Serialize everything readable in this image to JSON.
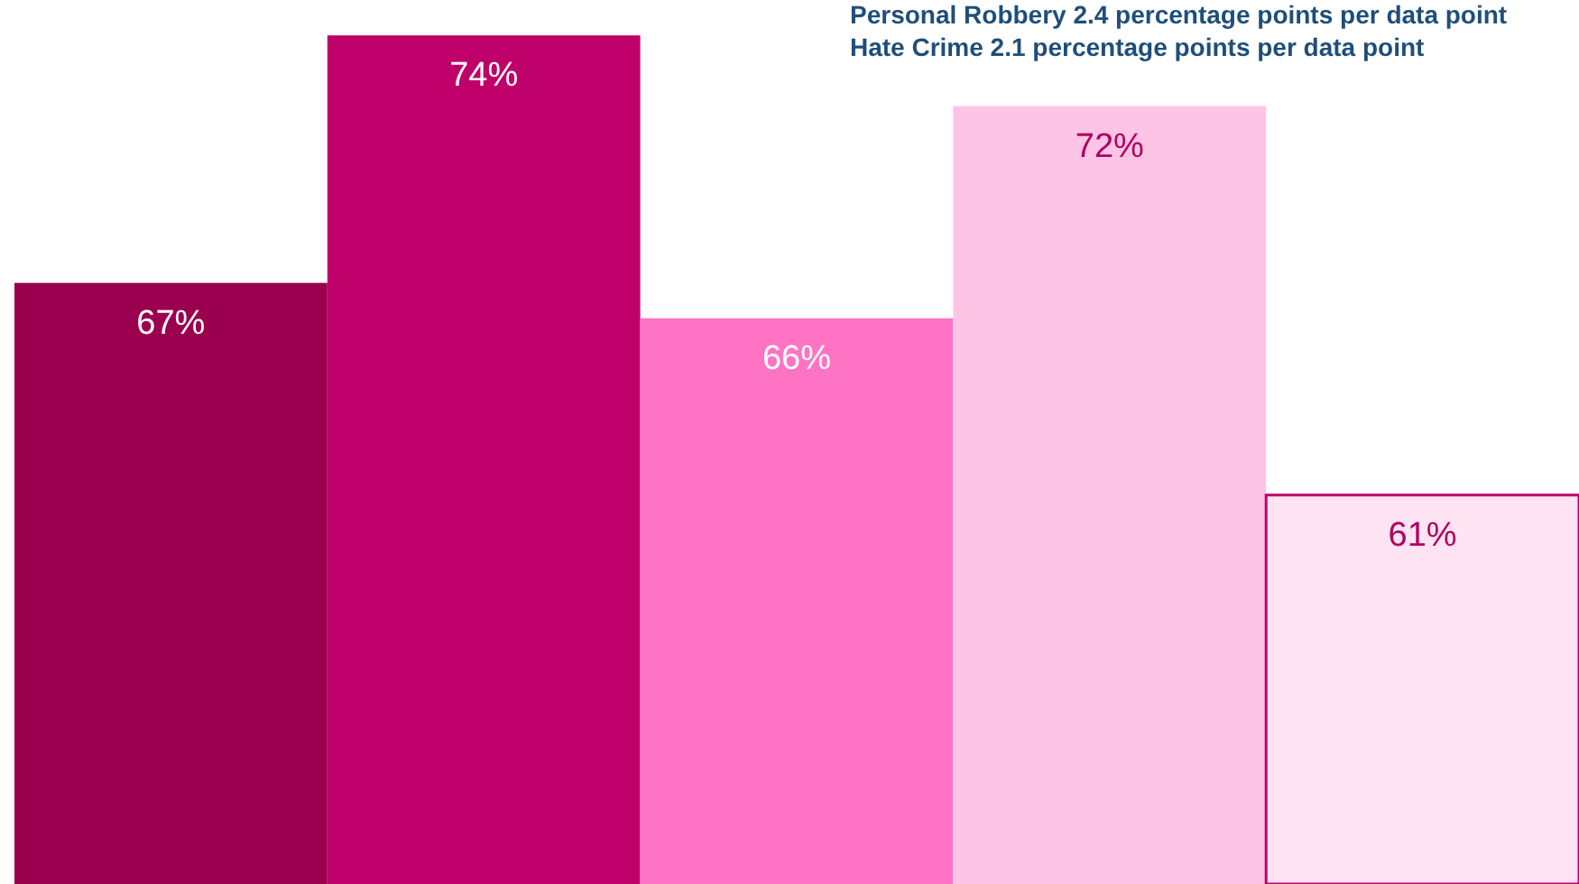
{
  "chart_data": {
    "type": "bar",
    "categories": [
      null,
      null,
      null,
      null,
      null
    ],
    "values": [
      67,
      74,
      66,
      72,
      61
    ],
    "colors": [
      "#9b004f",
      "#c0006a",
      "#ff73c4",
      "#fec4e6",
      "#fee3f2"
    ],
    "value_labels": [
      "67%",
      "74%",
      "66%",
      "72%",
      "61%"
    ],
    "ylim": [
      50,
      75
    ],
    "annotations": [
      "Personal Robbery 2.4 percentage points per data point",
      "Hate Crime 2.1 percentage points per data point"
    ]
  }
}
